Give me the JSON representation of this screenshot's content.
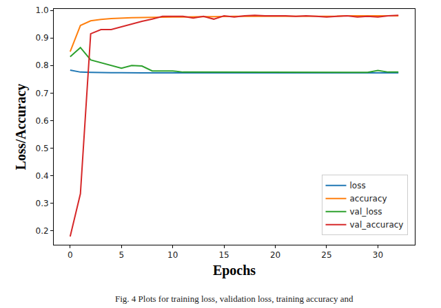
{
  "chart_data": {
    "type": "line",
    "x_label": "Epochs",
    "y_label": "Loss/Accuracy",
    "annotations": [
      "Fig. 4 Plots for training loss, validation loss, training accuracy and"
    ],
    "x": [
      0,
      1,
      2,
      3,
      4,
      5,
      6,
      7,
      8,
      9,
      10,
      11,
      12,
      13,
      14,
      15,
      16,
      17,
      18,
      19,
      20,
      21,
      22,
      23,
      24,
      25,
      26,
      27,
      28,
      29,
      30,
      31,
      32
    ],
    "series": [
      {
        "name": "loss",
        "color": "#1f77b4",
        "values": [
          0.783,
          0.776,
          0.775,
          0.774,
          0.774,
          0.774,
          0.773,
          0.773,
          0.773,
          0.773,
          0.773,
          0.773,
          0.773,
          0.773,
          0.773,
          0.773,
          0.773,
          0.773,
          0.773,
          0.773,
          0.773,
          0.773,
          0.773,
          0.773,
          0.773,
          0.773,
          0.773,
          0.773,
          0.773,
          0.773,
          0.773,
          0.773,
          0.773
        ]
      },
      {
        "name": "accuracy",
        "color": "#ff7f0e",
        "values": [
          0.85,
          0.945,
          0.962,
          0.967,
          0.97,
          0.972,
          0.973,
          0.974,
          0.975,
          0.975,
          0.976,
          0.976,
          0.977,
          0.977,
          0.977,
          0.978,
          0.978,
          0.978,
          0.978,
          0.978,
          0.978,
          0.979,
          0.979,
          0.979,
          0.979,
          0.979,
          0.979,
          0.98,
          0.98,
          0.98,
          0.98,
          0.98,
          0.98
        ]
      },
      {
        "name": "val_loss",
        "color": "#2ca02c",
        "values": [
          0.832,
          0.865,
          0.82,
          0.81,
          0.8,
          0.79,
          0.8,
          0.798,
          0.78,
          0.78,
          0.78,
          0.776,
          0.776,
          0.776,
          0.776,
          0.776,
          0.775,
          0.775,
          0.775,
          0.775,
          0.775,
          0.775,
          0.775,
          0.775,
          0.775,
          0.775,
          0.775,
          0.775,
          0.775,
          0.775,
          0.782,
          0.776,
          0.776
        ]
      },
      {
        "name": "val_accuracy",
        "color": "#d62728",
        "values": [
          0.18,
          0.335,
          0.915,
          0.93,
          0.93,
          0.94,
          0.95,
          0.96,
          0.968,
          0.978,
          0.978,
          0.978,
          0.972,
          0.978,
          0.968,
          0.98,
          0.976,
          0.98,
          0.982,
          0.98,
          0.98,
          0.98,
          0.978,
          0.98,
          0.978,
          0.976,
          0.978,
          0.98,
          0.976,
          0.978,
          0.976,
          0.98,
          0.982
        ]
      }
    ],
    "xlim": [
      -1.6,
      33.6
    ],
    "xticks": [
      0,
      5,
      10,
      15,
      20,
      25,
      30
    ],
    "ylim": [
      0.15,
      1.005
    ],
    "yticks": [
      0.2,
      0.3,
      0.4,
      0.5,
      0.6,
      0.7,
      0.8,
      0.9,
      {
        "value": 1.0,
        "label": "1.0"
      }
    ],
    "grid": false,
    "legend": "lower right"
  }
}
